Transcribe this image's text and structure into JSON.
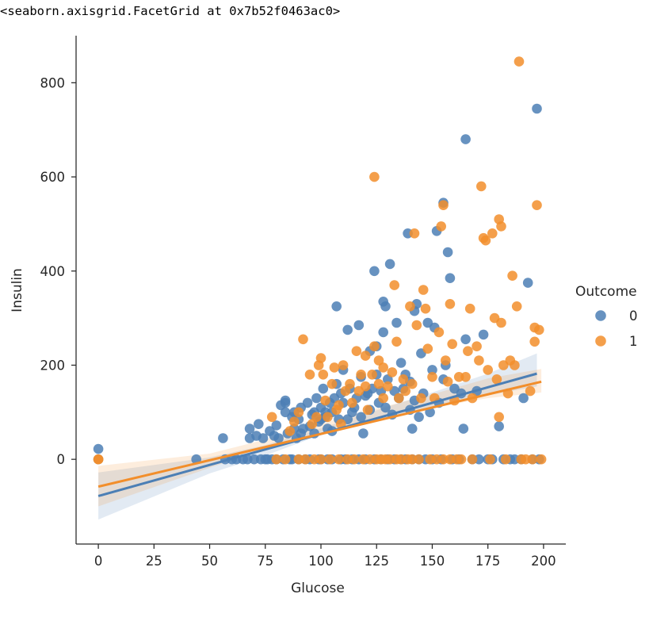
{
  "repr_text": "<seaborn.axisgrid.FacetGrid at 0x7b52f0463ac0>",
  "chart_data": {
    "type": "scatter",
    "xlabel": "Glucose",
    "ylabel": "Insulin",
    "xlim": [
      -10,
      210
    ],
    "ylim": [
      -180,
      900
    ],
    "xticks": [
      0,
      25,
      50,
      75,
      100,
      125,
      150,
      175,
      200
    ],
    "yticks": [
      0,
      200,
      400,
      600,
      800
    ],
    "legend": {
      "title": "Outcome",
      "position": "right"
    },
    "series": [
      {
        "name": "0",
        "color": "#4c7fb5",
        "regression": {
          "slope": 1.32,
          "intercept": -78,
          "x_range": [
            0,
            197
          ]
        },
        "ci_band": [
          [
            0,
            -128,
            -28
          ],
          [
            50,
            -30,
            4
          ],
          [
            75,
            8,
            30
          ],
          [
            100,
            52,
            66
          ],
          [
            125,
            84,
            104
          ],
          [
            150,
            112,
            142
          ],
          [
            175,
            136,
            182
          ],
          [
            197,
            155,
            225
          ]
        ],
        "points": [
          [
            0,
            22
          ],
          [
            0,
            0
          ],
          [
            44,
            0
          ],
          [
            56,
            45
          ],
          [
            57,
            0
          ],
          [
            60,
            0
          ],
          [
            62,
            0
          ],
          [
            65,
            0
          ],
          [
            67,
            0
          ],
          [
            68,
            65
          ],
          [
            68,
            45
          ],
          [
            70,
            0
          ],
          [
            71,
            50
          ],
          [
            72,
            75
          ],
          [
            73,
            0
          ],
          [
            74,
            45
          ],
          [
            75,
            0
          ],
          [
            76,
            0
          ],
          [
            77,
            60
          ],
          [
            78,
            0
          ],
          [
            79,
            50
          ],
          [
            80,
            0
          ],
          [
            80,
            72
          ],
          [
            81,
            45
          ],
          [
            82,
            115
          ],
          [
            83,
            0
          ],
          [
            84,
            100
          ],
          [
            84,
            125
          ],
          [
            84,
            120
          ],
          [
            85,
            55
          ],
          [
            86,
            0
          ],
          [
            87,
            0
          ],
          [
            87,
            90
          ],
          [
            88,
            65
          ],
          [
            88,
            100
          ],
          [
            89,
            45
          ],
          [
            90,
            0
          ],
          [
            90,
            85
          ],
          [
            91,
            110
          ],
          [
            91,
            55
          ],
          [
            92,
            65
          ],
          [
            93,
            0
          ],
          [
            94,
            120
          ],
          [
            95,
            70
          ],
          [
            95,
            0
          ],
          [
            96,
            95
          ],
          [
            97,
            100
          ],
          [
            97,
            55
          ],
          [
            98,
            130
          ],
          [
            99,
            0
          ],
          [
            99,
            80
          ],
          [
            100,
            85
          ],
          [
            100,
            110
          ],
          [
            100,
            0
          ],
          [
            101,
            150
          ],
          [
            102,
            100
          ],
          [
            102,
            90
          ],
          [
            103,
            0
          ],
          [
            103,
            65
          ],
          [
            104,
            120
          ],
          [
            105,
            100
          ],
          [
            105,
            0
          ],
          [
            105,
            60
          ],
          [
            106,
            130
          ],
          [
            107,
            325
          ],
          [
            107,
            160
          ],
          [
            108,
            85
          ],
          [
            109,
            140
          ],
          [
            109,
            0
          ],
          [
            110,
            190
          ],
          [
            110,
            120
          ],
          [
            111,
            0
          ],
          [
            112,
            85
          ],
          [
            112,
            275
          ],
          [
            113,
            150
          ],
          [
            114,
            100
          ],
          [
            114,
            0
          ],
          [
            115,
            110
          ],
          [
            116,
            130
          ],
          [
            117,
            285
          ],
          [
            117,
            0
          ],
          [
            118,
            90
          ],
          [
            118,
            175
          ],
          [
            119,
            55
          ],
          [
            120,
            135
          ],
          [
            120,
            0
          ],
          [
            121,
            140
          ],
          [
            122,
            105
          ],
          [
            122,
            230
          ],
          [
            123,
            150
          ],
          [
            124,
            0
          ],
          [
            124,
            400
          ],
          [
            125,
            180
          ],
          [
            125,
            240
          ],
          [
            126,
            120
          ],
          [
            127,
            0
          ],
          [
            127,
            145
          ],
          [
            128,
            335
          ],
          [
            128,
            270
          ],
          [
            129,
            110
          ],
          [
            129,
            325
          ],
          [
            130,
            0
          ],
          [
            130,
            170
          ],
          [
            131,
            415
          ],
          [
            132,
            95
          ],
          [
            133,
            0
          ],
          [
            133,
            145
          ],
          [
            134,
            290
          ],
          [
            135,
            130
          ],
          [
            136,
            0
          ],
          [
            136,
            205
          ],
          [
            137,
            150
          ],
          [
            138,
            180
          ],
          [
            138,
            0
          ],
          [
            139,
            480
          ],
          [
            140,
            105
          ],
          [
            140,
            165
          ],
          [
            141,
            0
          ],
          [
            141,
            65
          ],
          [
            142,
            315
          ],
          [
            142,
            125
          ],
          [
            143,
            330
          ],
          [
            144,
            0
          ],
          [
            144,
            90
          ],
          [
            145,
            225
          ],
          [
            146,
            140
          ],
          [
            147,
            0
          ],
          [
            148,
            290
          ],
          [
            149,
            100
          ],
          [
            150,
            0
          ],
          [
            150,
            190
          ],
          [
            151,
            280
          ],
          [
            152,
            485
          ],
          [
            153,
            120
          ],
          [
            154,
            0
          ],
          [
            155,
            545
          ],
          [
            155,
            170
          ],
          [
            156,
            200
          ],
          [
            157,
            440
          ],
          [
            158,
            385
          ],
          [
            159,
            0
          ],
          [
            160,
            150
          ],
          [
            162,
            0
          ],
          [
            163,
            140
          ],
          [
            164,
            65
          ],
          [
            165,
            680
          ],
          [
            165,
            255
          ],
          [
            168,
            0
          ],
          [
            170,
            145
          ],
          [
            171,
            0
          ],
          [
            173,
            265
          ],
          [
            175,
            0
          ],
          [
            177,
            0
          ],
          [
            180,
            70
          ],
          [
            182,
            0
          ],
          [
            185,
            0
          ],
          [
            187,
            0
          ],
          [
            190,
            0
          ],
          [
            191,
            130
          ],
          [
            193,
            375
          ],
          [
            195,
            0
          ],
          [
            197,
            745
          ],
          [
            198,
            0
          ]
        ]
      },
      {
        "name": "1",
        "color": "#f28e2b",
        "regression": {
          "slope": 1.12,
          "intercept": -58,
          "x_range": [
            0,
            199
          ]
        },
        "ci_band": [
          [
            0,
            -100,
            -14
          ],
          [
            50,
            -18,
            12
          ],
          [
            75,
            22,
            42
          ],
          [
            100,
            58,
            76
          ],
          [
            125,
            84,
            108
          ],
          [
            150,
            110,
            138
          ],
          [
            175,
            130,
            172
          ],
          [
            199,
            142,
            192
          ]
        ],
        "points": [
          [
            0,
            0
          ],
          [
            0,
            0
          ],
          [
            78,
            90
          ],
          [
            80,
            0
          ],
          [
            84,
            0
          ],
          [
            86,
            60
          ],
          [
            88,
            80
          ],
          [
            90,
            0
          ],
          [
            90,
            100
          ],
          [
            92,
            255
          ],
          [
            93,
            0
          ],
          [
            95,
            180
          ],
          [
            96,
            75
          ],
          [
            97,
            0
          ],
          [
            98,
            90
          ],
          [
            99,
            200
          ],
          [
            100,
            0
          ],
          [
            100,
            215
          ],
          [
            101,
            180
          ],
          [
            102,
            125
          ],
          [
            103,
            90
          ],
          [
            104,
            0
          ],
          [
            105,
            160
          ],
          [
            106,
            195
          ],
          [
            107,
            105
          ],
          [
            108,
            0
          ],
          [
            108,
            115
          ],
          [
            109,
            75
          ],
          [
            110,
            200
          ],
          [
            111,
            145
          ],
          [
            112,
            0
          ],
          [
            113,
            160
          ],
          [
            114,
            120
          ],
          [
            115,
            0
          ],
          [
            116,
            230
          ],
          [
            117,
            145
          ],
          [
            118,
            180
          ],
          [
            119,
            0
          ],
          [
            120,
            220
          ],
          [
            120,
            155
          ],
          [
            121,
            105
          ],
          [
            122,
            0
          ],
          [
            123,
            180
          ],
          [
            124,
            600
          ],
          [
            124,
            240
          ],
          [
            125,
            0
          ],
          [
            126,
            160
          ],
          [
            126,
            210
          ],
          [
            127,
            0
          ],
          [
            128,
            130
          ],
          [
            128,
            195
          ],
          [
            129,
            0
          ],
          [
            130,
            155
          ],
          [
            131,
            0
          ],
          [
            132,
            185
          ],
          [
            133,
            370
          ],
          [
            134,
            250
          ],
          [
            134,
            0
          ],
          [
            135,
            130
          ],
          [
            136,
            0
          ],
          [
            137,
            170
          ],
          [
            138,
            145
          ],
          [
            139,
            0
          ],
          [
            140,
            325
          ],
          [
            141,
            0
          ],
          [
            141,
            160
          ],
          [
            142,
            480
          ],
          [
            143,
            285
          ],
          [
            144,
            0
          ],
          [
            145,
            130
          ],
          [
            146,
            360
          ],
          [
            147,
            320
          ],
          [
            148,
            235
          ],
          [
            149,
            0
          ],
          [
            150,
            175
          ],
          [
            151,
            130
          ],
          [
            152,
            0
          ],
          [
            153,
            270
          ],
          [
            154,
            495
          ],
          [
            155,
            540
          ],
          [
            155,
            0
          ],
          [
            156,
            210
          ],
          [
            157,
            165
          ],
          [
            158,
            330
          ],
          [
            158,
            0
          ],
          [
            159,
            245
          ],
          [
            160,
            125
          ],
          [
            161,
            0
          ],
          [
            162,
            175
          ],
          [
            163,
            0
          ],
          [
            165,
            175
          ],
          [
            166,
            230
          ],
          [
            167,
            320
          ],
          [
            168,
            130
          ],
          [
            168,
            0
          ],
          [
            170,
            240
          ],
          [
            171,
            210
          ],
          [
            172,
            580
          ],
          [
            173,
            470
          ],
          [
            174,
            465
          ],
          [
            175,
            190
          ],
          [
            176,
            0
          ],
          [
            177,
            480
          ],
          [
            178,
            300
          ],
          [
            179,
            170
          ],
          [
            180,
            90
          ],
          [
            180,
            510
          ],
          [
            181,
            495
          ],
          [
            181,
            290
          ],
          [
            182,
            200
          ],
          [
            183,
            0
          ],
          [
            184,
            140
          ],
          [
            185,
            210
          ],
          [
            186,
            390
          ],
          [
            187,
            200
          ],
          [
            188,
            325
          ],
          [
            189,
            845
          ],
          [
            190,
            0
          ],
          [
            192,
            0
          ],
          [
            194,
            145
          ],
          [
            195,
            0
          ],
          [
            196,
            250
          ],
          [
            196,
            280
          ],
          [
            197,
            540
          ],
          [
            198,
            275
          ],
          [
            199,
            0
          ]
        ]
      }
    ]
  }
}
